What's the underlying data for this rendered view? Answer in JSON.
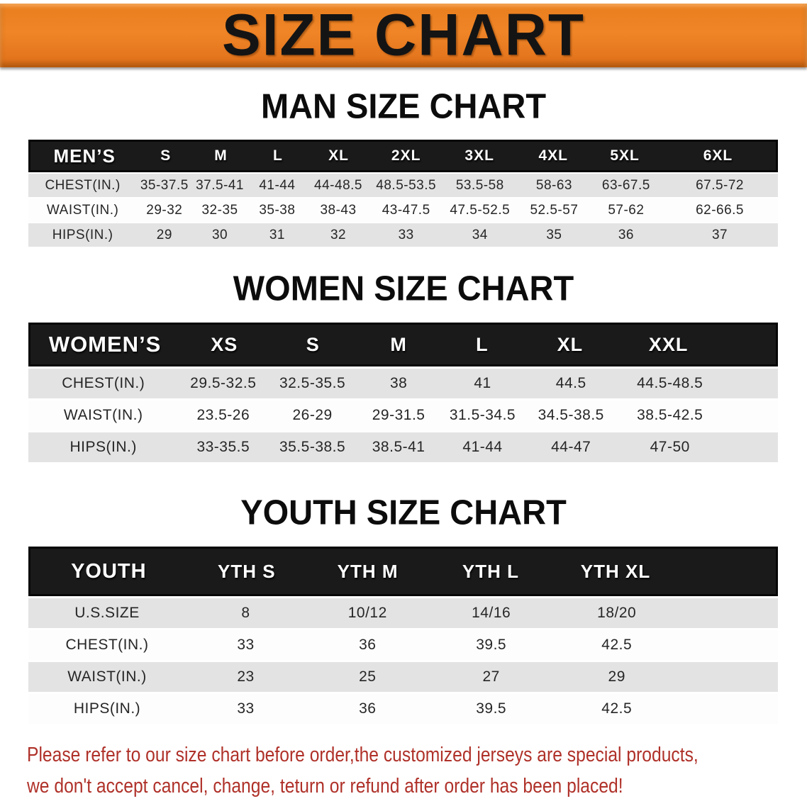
{
  "colors": {
    "banner_bg": "#E97E1E",
    "header_bg": "#1A1A1A",
    "row_alt_bg": "#E3E3E3",
    "footer_text": "#AF3129"
  },
  "banner": {
    "title": "SIZE CHART"
  },
  "sections": [
    {
      "title": "MAN SIZE CHART",
      "table": {
        "name": "mens",
        "label_header": "MEN’S",
        "columns": [
          "S",
          "M",
          "L",
          "XL",
          "2XL",
          "3XL",
          "4XL",
          "5XL",
          "6XL"
        ],
        "rows": [
          {
            "label": "CHEST(IN.)",
            "values": [
              "35-37.5",
              "37.5-41",
              "41-44",
              "44-48.5",
              "48.5-53.5",
              "53.5-58",
              "58-63",
              "63-67.5",
              "67.5-72"
            ]
          },
          {
            "label": "WAIST(IN.)",
            "values": [
              "29-32",
              "32-35",
              "35-38",
              "38-43",
              "43-47.5",
              "47.5-52.5",
              "52.5-57",
              "57-62",
              "62-66.5"
            ]
          },
          {
            "label": "HIPS(IN.)",
            "values": [
              "29",
              "30",
              "31",
              "32",
              "33",
              "34",
              "35",
              "36",
              "37"
            ]
          }
        ]
      }
    },
    {
      "title": "WOMEN SIZE CHART",
      "table": {
        "name": "womens",
        "label_header": "WOMEN’S",
        "columns": [
          "XS",
          "S",
          "M",
          "L",
          "XL",
          "XXL"
        ],
        "rows": [
          {
            "label": "CHEST(IN.)",
            "values": [
              "29.5-32.5",
              "32.5-35.5",
              "38",
              "41",
              "44.5",
              "44.5-48.5"
            ]
          },
          {
            "label": "WAIST(IN.)",
            "values": [
              "23.5-26",
              "26-29",
              "29-31.5",
              "31.5-34.5",
              "34.5-38.5",
              "38.5-42.5"
            ]
          },
          {
            "label": "HIPS(IN.)",
            "values": [
              "33-35.5",
              "35.5-38.5",
              "38.5-41",
              "41-44",
              "44-47",
              "47-50"
            ]
          }
        ]
      }
    },
    {
      "title": "YOUTH SIZE CHART",
      "table": {
        "name": "youth",
        "label_header": "YOUTH",
        "columns": [
          "YTH S",
          "YTH M",
          "YTH L",
          "YTH XL"
        ],
        "rows": [
          {
            "label": "U.S.SIZE",
            "values": [
              "8",
              "10/12",
              "14/16",
              "18/20"
            ]
          },
          {
            "label": "CHEST(IN.)",
            "values": [
              "33",
              "36",
              "39.5",
              "42.5"
            ]
          },
          {
            "label": "WAIST(IN.)",
            "values": [
              "23",
              "25",
              "27",
              "29"
            ]
          },
          {
            "label": "HIPS(IN.)",
            "values": [
              "33",
              "36",
              "39.5",
              "42.5"
            ]
          }
        ]
      }
    }
  ],
  "footer": {
    "line1": "Please refer to our size chart before order,the customized jerseys are special products,",
    "line2": "we don't accept cancel, change, teturn or refund after order has been placed!"
  }
}
